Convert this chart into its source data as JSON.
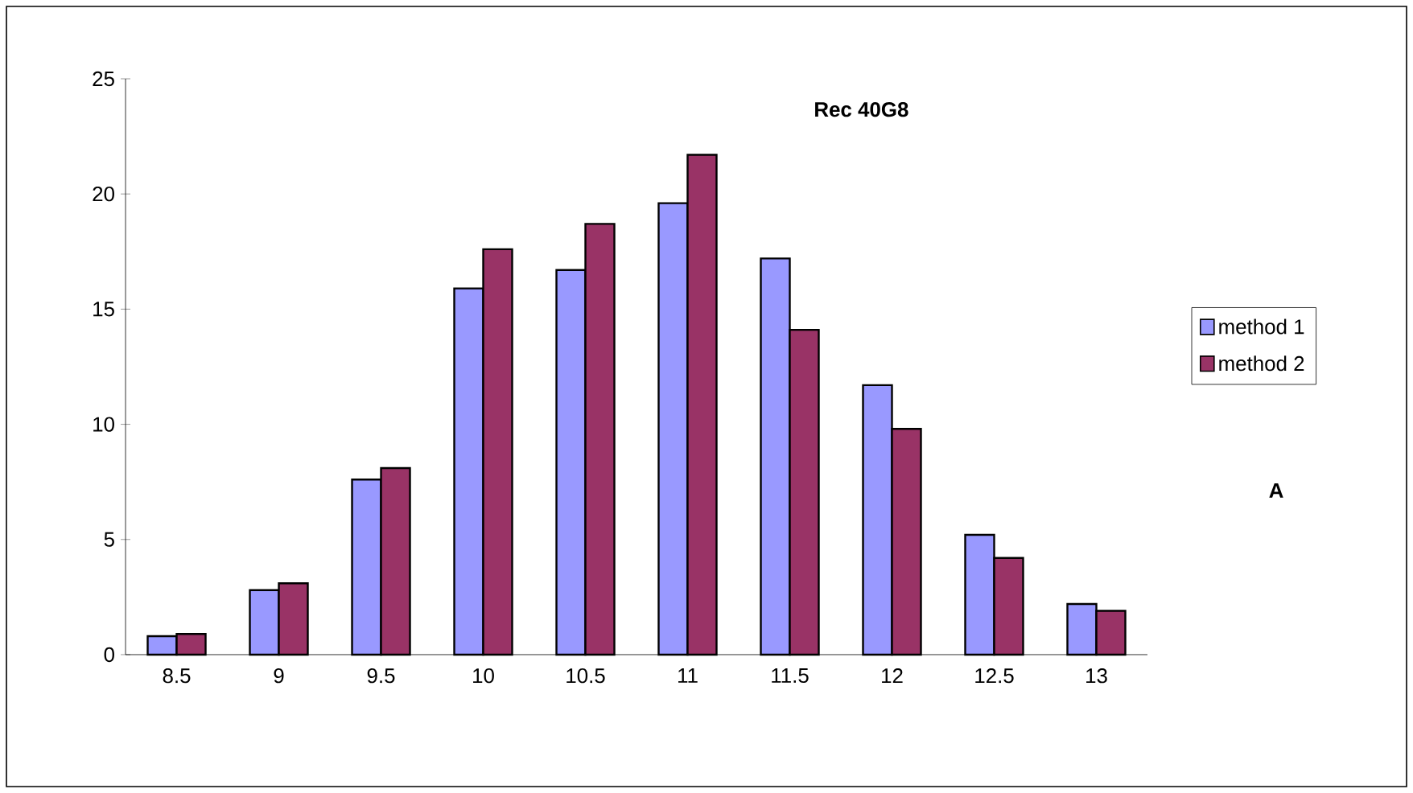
{
  "chart_data": {
    "type": "bar",
    "title": "Rec 40G8",
    "categories": [
      "8.5",
      "9",
      "9.5",
      "10",
      "10.5",
      "11",
      "11.5",
      "12",
      "12.5",
      "13"
    ],
    "series": [
      {
        "name": "method 1",
        "color": "#9999ff",
        "values": [
          0.8,
          2.8,
          7.6,
          15.9,
          16.7,
          19.6,
          17.2,
          11.7,
          5.2,
          2.2
        ]
      },
      {
        "name": "method 2",
        "color": "#993366",
        "values": [
          0.9,
          3.1,
          8.1,
          17.6,
          18.7,
          21.7,
          14.1,
          9.8,
          4.2,
          1.9
        ]
      }
    ],
    "ylim": [
      0,
      25
    ],
    "yticks": [
      0,
      5,
      10,
      15,
      20,
      25
    ],
    "legend": "right",
    "annotations": [
      "A"
    ]
  }
}
